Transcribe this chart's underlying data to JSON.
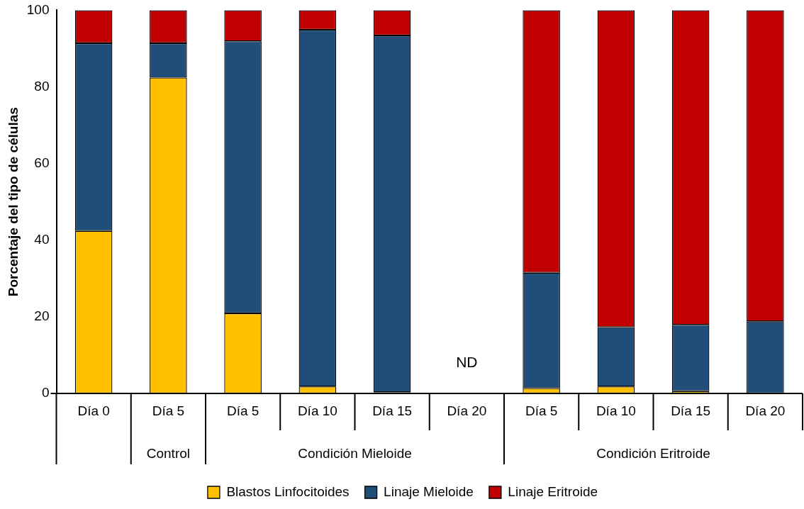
{
  "chart_data": {
    "type": "bar",
    "stacked": true,
    "ylabel": "Porcentaje del tipo de células",
    "categories": [
      "Día 0",
      "Día 5",
      "Día 5",
      "Día 10",
      "Día 15",
      "Día 20",
      "Día 5",
      "Día 10",
      "Día 15",
      "Día 20"
    ],
    "series": [
      {
        "name": "Blastos Linfocitoides",
        "color": "#ffc000",
        "values": [
          42.4,
          82.4,
          20.9,
          1.8,
          0.3,
          null,
          1.4,
          1.8,
          0.6,
          0
        ]
      },
      {
        "name": "Linaje Mieloide",
        "color": "#1f4e79",
        "values": [
          49.0,
          9.0,
          71.0,
          93.1,
          93.1,
          null,
          30.1,
          15.5,
          17.3,
          18.8
        ]
      },
      {
        "name": "Linaje Eritroide",
        "color": "#c00000",
        "values": [
          8.6,
          8.6,
          8.1,
          5.1,
          6.6,
          null,
          68.5,
          82.7,
          82.1,
          81.2
        ]
      }
    ],
    "ylim": [
      0,
      100
    ],
    "yticks": [
      0,
      20,
      40,
      60,
      80,
      100
    ],
    "grid": false,
    "legend": "bottom",
    "annotations": [
      "Control",
      "Condición Mieloide",
      "Condición Eritroide",
      "ND"
    ]
  }
}
